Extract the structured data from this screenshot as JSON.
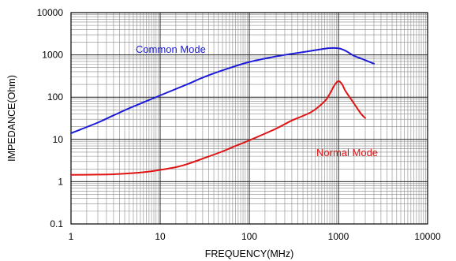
{
  "chart_data": {
    "type": "line",
    "title": "",
    "xlabel": "FREQUENCY(MHz)",
    "ylabel": "IMPEDANCE(Ohm)",
    "x_scale": "log",
    "y_scale": "log",
    "xlim": [
      1,
      10000
    ],
    "ylim": [
      0.1,
      10000
    ],
    "x_ticks": [
      "1",
      "10",
      "100",
      "1000",
      "10000"
    ],
    "y_ticks": [
      "0.1",
      "1",
      "10",
      "100",
      "1000",
      "10000"
    ],
    "grid": true,
    "series": [
      {
        "name": "Common Mode",
        "color": "#1c1cd8",
        "x": [
          1,
          2,
          3,
          5,
          10,
          20,
          30,
          50,
          100,
          200,
          300,
          500,
          700,
          800,
          1000,
          1200,
          1500,
          2000,
          2500
        ],
        "y": [
          14,
          25,
          37,
          60,
          110,
          200,
          290,
          430,
          680,
          920,
          1060,
          1250,
          1400,
          1450,
          1430,
          1250,
          950,
          750,
          620
        ]
      },
      {
        "name": "Normal Mode",
        "color": "#e01414",
        "x": [
          1,
          2,
          3,
          5,
          7,
          10,
          15,
          20,
          30,
          50,
          70,
          100,
          200,
          300,
          500,
          700,
          800,
          900,
          1000,
          1100,
          1200,
          1500,
          1800,
          2000
        ],
        "y": [
          1.45,
          1.47,
          1.5,
          1.6,
          1.7,
          1.9,
          2.2,
          2.6,
          3.5,
          5.2,
          7,
          9.5,
          18,
          28,
          45,
          80,
          120,
          190,
          240,
          200,
          140,
          70,
          40,
          32
        ]
      }
    ]
  }
}
